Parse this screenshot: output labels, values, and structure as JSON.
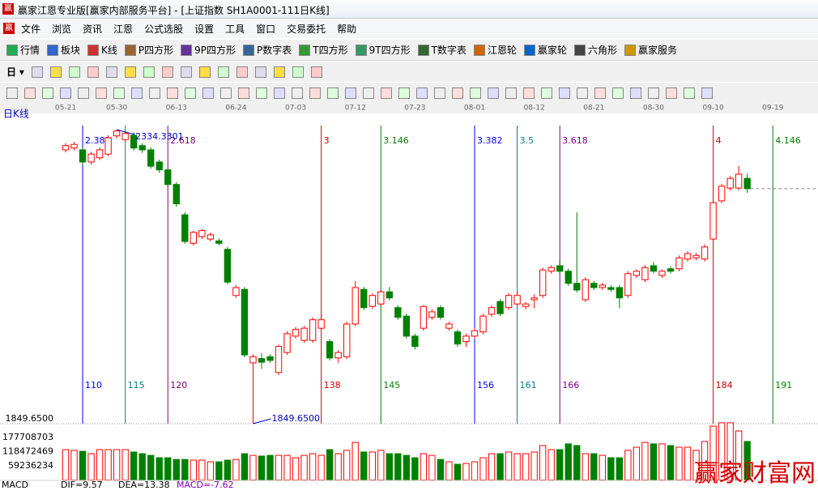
{
  "window": {
    "title": "赢家江恩专业版[赢家内部服务平台] - [上证指数  SH1A0001-111日K线]"
  },
  "menu": [
    "文件",
    "浏览",
    "资讯",
    "江恩",
    "公式选股",
    "设置",
    "工具",
    "窗口",
    "交易委托",
    "帮助"
  ],
  "toolbar": [
    "行情",
    "板块",
    "K线",
    "P四方形",
    "9P四方形",
    "P数字表",
    "T四方形",
    "9T四方形",
    "T数字表",
    "江恩轮",
    "赢家轮",
    "六角形",
    "赢家服务"
  ],
  "toolbar_period": "日",
  "chart_data": {
    "type": "candlestick",
    "panel_label": "日K线",
    "xlim": [
      100.3,
      196.3
    ],
    "ylim": [
      1849.65,
      2334.33
    ],
    "yticks": [
      {
        "value": 1849.65,
        "label": "1849.6500"
      }
    ],
    "first_bar": 108,
    "colors": {
      "up": "#ff0000",
      "down": "#008000"
    },
    "candles": [
      [
        2301,
        2312,
        2297,
        2308
      ],
      [
        2304,
        2314,
        2300,
        2310
      ],
      [
        2301,
        2305,
        2276,
        2281
      ],
      [
        2281,
        2298,
        2277,
        2294
      ],
      [
        2288,
        2305,
        2284,
        2301
      ],
      [
        2294,
        2325,
        2290,
        2321
      ],
      [
        2324,
        2334.33,
        2320,
        2332
      ],
      [
        2318,
        2331,
        2314,
        2328
      ],
      [
        2325,
        2330,
        2300,
        2304
      ],
      [
        2308,
        2312,
        2296,
        2301
      ],
      [
        2301,
        2305,
        2270,
        2274
      ],
      [
        2281,
        2285,
        2263,
        2268
      ],
      [
        2268,
        2272,
        2240,
        2244
      ],
      [
        2244,
        2248,
        2207,
        2212
      ],
      [
        2194,
        2198,
        2146,
        2150
      ],
      [
        2147,
        2168,
        2143,
        2165
      ],
      [
        2158,
        2171,
        2154,
        2168
      ],
      [
        2154,
        2165,
        2150,
        2161
      ],
      [
        2151,
        2155,
        2143,
        2147
      ],
      [
        2137,
        2141,
        2079,
        2083
      ],
      [
        2061,
        2078,
        2057,
        2074
      ],
      [
        2071,
        2075,
        1959,
        1963
      ],
      [
        1950,
        1964,
        1849.65,
        1960
      ],
      [
        1957,
        1966,
        1940,
        1951
      ],
      [
        1960,
        1964,
        1950,
        1954
      ],
      [
        1934,
        1980,
        1930,
        1977
      ],
      [
        1967,
        2002,
        1963,
        1998
      ],
      [
        1994,
        2009,
        1990,
        2005
      ],
      [
        1987,
        2011,
        1983,
        2007
      ],
      [
        1987,
        2025,
        1983,
        2021
      ],
      [
        2007,
        2030,
        2003,
        2021
      ],
      [
        1985,
        1989,
        1954,
        1958
      ],
      [
        1958,
        1971,
        1950,
        1967
      ],
      [
        1960,
        2018,
        1956,
        2014
      ],
      [
        2014,
        2085,
        2010,
        2074
      ],
      [
        2071,
        2075,
        2037,
        2041
      ],
      [
        2043,
        2064,
        2039,
        2061
      ],
      [
        2047,
        2071,
        2043,
        2067
      ],
      [
        2067,
        2075,
        2053,
        2057
      ],
      [
        2041,
        2045,
        2021,
        2025
      ],
      [
        2027,
        2031,
        1990,
        1994
      ],
      [
        1994,
        1998,
        1972,
        1977
      ],
      [
        2007,
        2045,
        2003,
        2043
      ],
      [
        2025,
        2038,
        2021,
        2034
      ],
      [
        2041,
        2045,
        2021,
        2025
      ],
      [
        2007,
        2018,
        2003,
        2014
      ],
      [
        2001,
        2005,
        1976,
        1981
      ],
      [
        1985,
        1998,
        1976,
        1994
      ],
      [
        1994,
        2007,
        1990,
        2003
      ],
      [
        2001,
        2031,
        1997,
        2027
      ],
      [
        2030,
        2045,
        2026,
        2041
      ],
      [
        2051,
        2055,
        2027,
        2031
      ],
      [
        2041,
        2065,
        2037,
        2061
      ],
      [
        2047,
        2068,
        2043,
        2061
      ],
      [
        2043,
        2050,
        2038,
        2047
      ],
      [
        2054,
        2063,
        2040,
        2057
      ],
      [
        2061,
        2107,
        2057,
        2103
      ],
      [
        2101,
        2111,
        2097,
        2107
      ],
      [
        2110,
        2120,
        2097,
        2101
      ],
      [
        2101,
        2105,
        2077,
        2081
      ],
      [
        2081,
        2198,
        2066,
        2070
      ],
      [
        2054,
        2091,
        2050,
        2087
      ],
      [
        2081,
        2085,
        2070,
        2074
      ],
      [
        2074,
        2082,
        2070,
        2078
      ],
      [
        2074,
        2078,
        2067,
        2071
      ],
      [
        2074,
        2078,
        2040,
        2057
      ],
      [
        2061,
        2101,
        2057,
        2097
      ],
      [
        2094,
        2104,
        2090,
        2101
      ],
      [
        2087,
        2111,
        2083,
        2107
      ],
      [
        2110,
        2116,
        2097,
        2101
      ],
      [
        2094,
        2104,
        2090,
        2101
      ],
      [
        2105,
        2109,
        2097,
        2101
      ],
      [
        2105,
        2127,
        2101,
        2123
      ],
      [
        2121,
        2134,
        2117,
        2130
      ],
      [
        2123,
        2131,
        2119,
        2127
      ],
      [
        2121,
        2145,
        2117,
        2141
      ],
      [
        2154,
        2218,
        2150,
        2214
      ],
      [
        2217,
        2245,
        2213,
        2241
      ],
      [
        2238,
        2258,
        2234,
        2254
      ],
      [
        2238,
        2275,
        2234,
        2261
      ],
      [
        2254,
        2262,
        2230,
        2237
      ]
    ],
    "date_ticks": [
      {
        "bar": 108,
        "label": "05-21"
      },
      {
        "bar": 114,
        "label": "05-30"
      },
      {
        "bar": 121,
        "label": "06-13"
      },
      {
        "bar": 128,
        "label": "06-24"
      },
      {
        "bar": 135,
        "label": "07-03"
      },
      {
        "bar": 142,
        "label": "07-12"
      },
      {
        "bar": 149,
        "label": "07-23"
      },
      {
        "bar": 156,
        "label": "08-01"
      },
      {
        "bar": 163,
        "label": "08-12"
      },
      {
        "bar": 170,
        "label": "08-21"
      },
      {
        "bar": 177,
        "label": "08-30"
      },
      {
        "bar": 184,
        "label": "09-10"
      },
      {
        "bar": 191,
        "label": "09-19"
      }
    ],
    "annotations": [
      {
        "bar": 114,
        "value": 2334.33,
        "label": "2334.3301"
      },
      {
        "bar": 130,
        "value": 1849.65,
        "label": "1849.6500"
      }
    ],
    "cycle_lines": [
      {
        "bar": 110,
        "ratio": 2.382,
        "color": "#0000ff"
      },
      {
        "bar": 115,
        "ratio": null,
        "color": "#008080"
      },
      {
        "bar": 120,
        "ratio": 2.618,
        "color": "#800080"
      },
      {
        "bar": 138,
        "ratio": 3,
        "color": "#d00000"
      },
      {
        "bar": 145,
        "ratio": 3.146,
        "color": "#008000"
      },
      {
        "bar": 156,
        "ratio": 3.382,
        "color": "#0000ff"
      },
      {
        "bar": 161,
        "ratio": 3.5,
        "color": "#008080"
      },
      {
        "bar": 166,
        "ratio": 3.618,
        "color": "#800080"
      },
      {
        "bar": 184,
        "ratio": 4,
        "color": "#d00000"
      },
      {
        "bar": 191,
        "ratio": 4.146,
        "color": "#008000"
      }
    ],
    "volume": {
      "ylim": [
        0,
        238650000
      ],
      "yticks": [
        59236234,
        118472469,
        177708703
      ],
      "values": [
        127000000,
        124000000,
        120000000,
        110000000,
        127000000,
        127000000,
        127000000,
        127000000,
        117000000,
        110000000,
        103000000,
        93000000,
        93000000,
        86000000,
        86000000,
        83000000,
        83000000,
        76000000,
        76000000,
        83000000,
        86000000,
        110000000,
        103000000,
        100000000,
        103000000,
        103000000,
        103000000,
        93000000,
        103000000,
        110000000,
        103000000,
        127000000,
        110000000,
        124000000,
        157000000,
        117000000,
        117000000,
        124000000,
        110000000,
        110000000,
        103000000,
        93000000,
        110000000,
        103000000,
        86000000,
        76000000,
        66000000,
        69000000,
        76000000,
        93000000,
        110000000,
        110000000,
        117000000,
        110000000,
        110000000,
        117000000,
        144000000,
        127000000,
        127000000,
        151000000,
        144000000,
        110000000,
        110000000,
        103000000,
        93000000,
        93000000,
        124000000,
        137000000,
        157000000,
        151000000,
        151000000,
        144000000,
        137000000,
        137000000,
        124000000,
        161000000,
        225000000,
        239000000,
        239000000,
        205000000,
        161000000
      ]
    },
    "macd": {
      "title": "MACD",
      "dif": {
        "value": 9.57,
        "label": "DIF=9.57"
      },
      "dea": {
        "value": 13.38,
        "label": "DEA=13.38"
      },
      "macd": {
        "value": -7.62,
        "label": "MACD=-7.62"
      }
    }
  },
  "watermark": "赢家财富网"
}
